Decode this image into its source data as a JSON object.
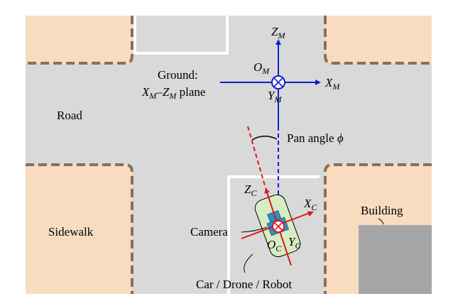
{
  "labels": {
    "ground_line1": "Ground:",
    "ground_line2_pre": "X",
    "ground_line2_sub1": "M",
    "ground_line2_mid": "–Z",
    "ground_line2_sub2": "M",
    "ground_line2_post": " plane",
    "road": "Road",
    "sidewalk": "Sidewalk",
    "building": "Building",
    "camera": "Camera",
    "vehicle": "Car / Drone / Robot",
    "pan_angle": "Pan angle ",
    "pan_angle_symbol": "ϕ"
  },
  "map_axes": {
    "origin": "O",
    "origin_sub": "M",
    "x": "X",
    "x_sub": "M",
    "y": "Y",
    "y_sub": "M",
    "z": "Z",
    "z_sub": "M",
    "color": "#1020d0"
  },
  "camera_axes": {
    "origin": "O",
    "origin_sub": "C",
    "x": "X",
    "x_sub": "C",
    "y": "Y",
    "y_sub": "C",
    "z": "Z",
    "z_sub": "C",
    "color": "#e0161b"
  },
  "colors": {
    "road": "#d9d9d9",
    "sidewalk": "#f7dcc0",
    "sidewalk_border": "#8c6d57",
    "building": "#a6a6a6",
    "vehicle_body": "#d8ecc4",
    "camera_body": "#2f8fbf"
  }
}
